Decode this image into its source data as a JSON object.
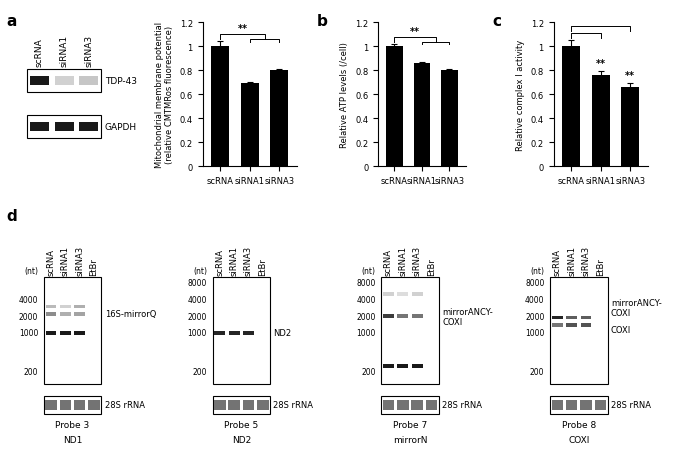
{
  "chart_data": [
    {
      "panel": "a",
      "type": "bar",
      "categories": [
        "scRNA",
        "siRNA1",
        "siRNA3"
      ],
      "values": [
        1.0,
        0.69,
        0.8
      ],
      "errors": [
        0.04,
        0.01,
        0.01
      ],
      "color": "#000000",
      "ylabel": "Mitochondrial membrane potential\n(relative CMTMRos fluorescence)",
      "ylim": [
        0,
        1.2
      ],
      "yticks": [
        0,
        0.2,
        0.4,
        0.6,
        0.8,
        1,
        1.2
      ],
      "grid": false,
      "annotations": [
        {
          "text": "**",
          "from": "scRNA",
          "to": [
            "siRNA1",
            "siRNA3"
          ]
        }
      ]
    },
    {
      "panel": "b",
      "type": "bar",
      "categories": [
        "scRNA",
        "siRNA1",
        "siRNA3"
      ],
      "values": [
        1.0,
        0.86,
        0.8
      ],
      "errors": [
        0.02,
        0.01,
        0.01
      ],
      "color": "#000000",
      "ylabel": "Relative ATP levels (/cell)",
      "ylim": [
        0,
        1.2
      ],
      "yticks": [
        0,
        0.2,
        0.4,
        0.6,
        0.8,
        1,
        1.2
      ],
      "grid": false,
      "annotations": [
        {
          "text": "**",
          "from": "scRNA",
          "to": [
            "siRNA1",
            "siRNA3"
          ]
        }
      ]
    },
    {
      "panel": "c",
      "type": "bar",
      "categories": [
        "scRNA",
        "siRNA1",
        "siRNA3"
      ],
      "values": [
        1.0,
        0.76,
        0.66
      ],
      "errors": [
        0.05,
        0.03,
        0.03
      ],
      "color": "#000000",
      "ylabel": "Relative complex I activity",
      "ylim": [
        0,
        1.2
      ],
      "yticks": [
        0,
        0.2,
        0.4,
        0.6,
        0.8,
        1,
        1.2
      ],
      "grid": false,
      "annotations": [
        {
          "text": "**",
          "from": "scRNA",
          "to": [
            "siRNA1"
          ]
        },
        {
          "text": "**",
          "from": "scRNA",
          "to": [
            "siRNA3"
          ]
        }
      ]
    }
  ],
  "western_blot": {
    "panel": "a",
    "lanes": [
      "scRNA",
      "siRNA1",
      "siRNA3"
    ],
    "rows": [
      {
        "label": "TDP-43",
        "intensities": [
          1.0,
          0.2,
          0.25
        ]
      },
      {
        "label": "GAPDH",
        "intensities": [
          1.0,
          1.0,
          1.0
        ]
      }
    ]
  },
  "northern_blots": {
    "panel": "d",
    "lanes": [
      "scRNA",
      "siRNA1",
      "siRNA3",
      "EtBr"
    ],
    "unit": "(nt)",
    "loading_control": "28S rRNA",
    "blots": [
      {
        "probe": "Probe 3",
        "target": "ND1",
        "markers": [
          4000,
          2000,
          1000,
          200
        ],
        "bands": [
          {
            "nt": 3000,
            "intensities": [
              0.3,
              0.2,
              0.35,
              0
            ]
          },
          {
            "nt": 2200,
            "intensities": [
              0.5,
              0.35,
              0.4,
              0
            ],
            "label": "16S-mirrorQ"
          },
          {
            "nt": 1000,
            "intensities": [
              1.0,
              1.0,
              1.0,
              0
            ]
          }
        ]
      },
      {
        "probe": "Probe 5",
        "target": "ND2",
        "markers": [
          8000,
          4000,
          2000,
          1000,
          200
        ],
        "bands": [
          {
            "nt": 1000,
            "intensities": [
              0.95,
              0.95,
              0.95,
              0
            ],
            "label": "ND2"
          }
        ]
      },
      {
        "probe": "Probe 7",
        "target": "mirrorN",
        "markers": [
          8000,
          4000,
          2000,
          1000,
          200
        ],
        "bands": [
          {
            "nt": 5000,
            "intensities": [
              0.2,
              0.15,
              0.2,
              0
            ]
          },
          {
            "nt": 2000,
            "intensities": [
              0.85,
              0.6,
              0.6,
              0
            ],
            "label": "mirrorANCY-\nCOXI"
          },
          {
            "nt": 250,
            "intensities": [
              1.0,
              1.0,
              1.0,
              0
            ]
          }
        ]
      },
      {
        "probe": "Probe 8",
        "target": "COXI",
        "markers": [
          8000,
          4000,
          2000,
          1000,
          200
        ],
        "bands": [
          {
            "nt": 1900,
            "intensities": [
              0.95,
              0.7,
              0.7,
              0
            ],
            "label": "mirrorANCY-\nCOXI"
          },
          {
            "nt": 1400,
            "intensities": [
              0.6,
              0.75,
              0.75,
              0
            ],
            "label": "COXI"
          }
        ]
      }
    ]
  }
}
